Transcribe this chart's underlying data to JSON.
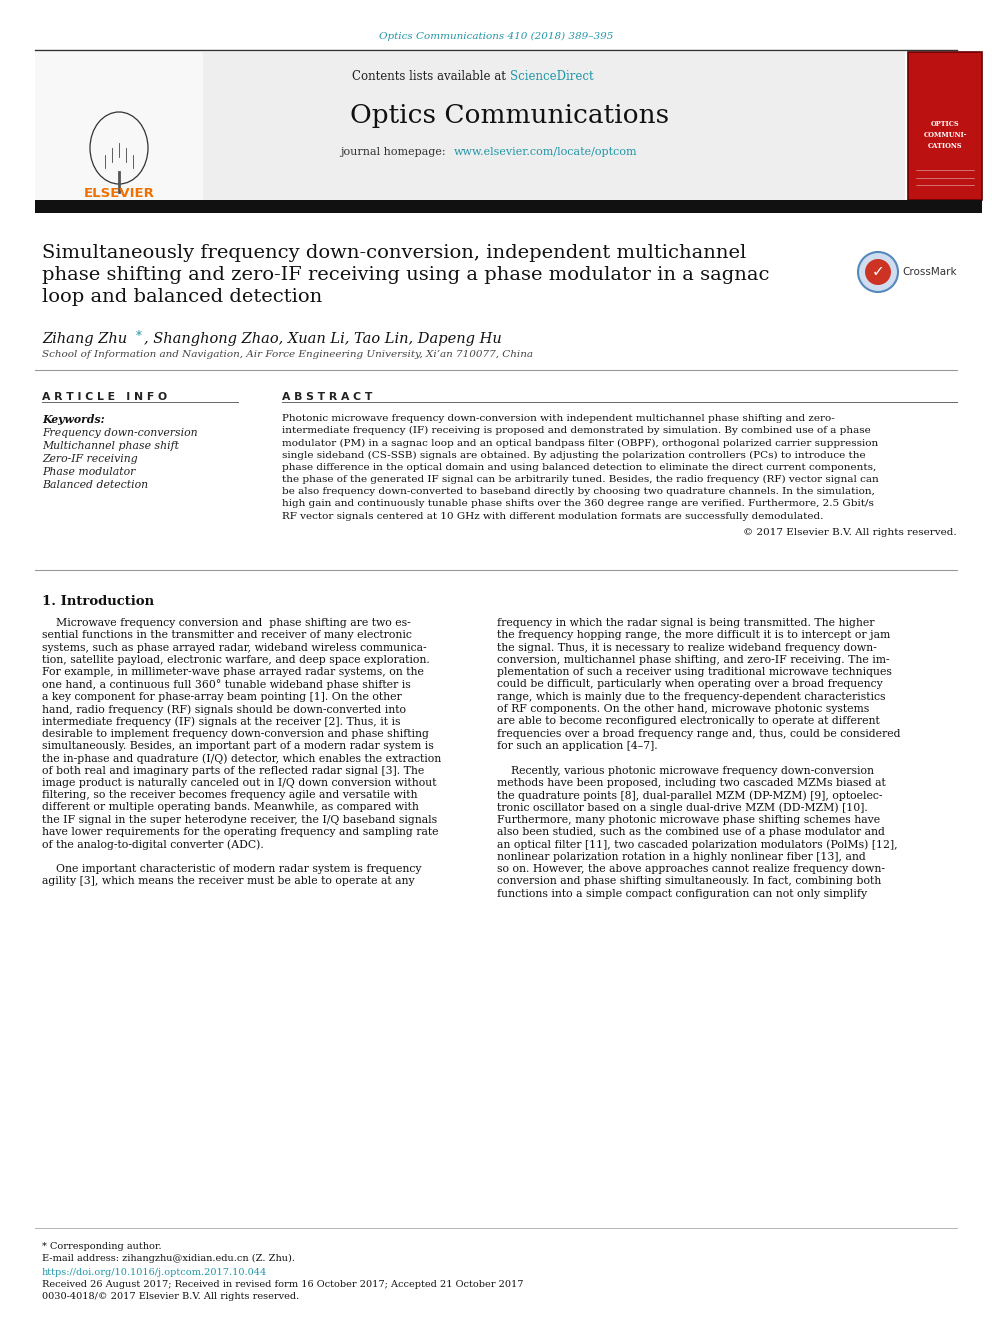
{
  "page_bg": "#ffffff",
  "top_journal_ref": "Optics Communications 410 (2018) 389–395",
  "top_journal_ref_color": "#2196a8",
  "header_contents": "Contents lists available at ",
  "header_sciencedirect": "ScienceDirect",
  "header_sciencedirect_color": "#2196a8",
  "header_journal_name": "Optics Communications",
  "header_homepage_text": "journal homepage: ",
  "header_homepage_url": "www.elsevier.com/locate/optcom",
  "header_homepage_url_color": "#2196a8",
  "title_line1": "Simultaneously frequency down-conversion, independent multichannel",
  "title_line2": "phase shifting and zero-IF receiving using a phase modulator in a sagnac",
  "title_line3": "loop and balanced detection",
  "author_name1": "Zihang Zhu",
  "author_star_color": "#2196a8",
  "author_rest": ", Shanghong Zhao, Xuan Li, Tao Lin, Dapeng Hu",
  "affiliation": "School of Information and Navigation, Air Force Engineering University, Xi’an 710077, China",
  "article_info_header": "A R T I C L E   I N F O",
  "abstract_header": "A B S T R A C T",
  "keywords_label": "Keywords:",
  "keywords": [
    "Frequency down-conversion",
    "Multichannel phase shift",
    "Zero-IF receiving",
    "Phase modulator",
    "Balanced detection"
  ],
  "abstract_lines": [
    "Photonic microwave frequency down-conversion with independent multichannel phase shifting and zero-",
    "intermediate frequency (IF) receiving is proposed and demonstrated by simulation. By combined use of a phase",
    "modulator (PM) in a sagnac loop and an optical bandpass filter (OBPF), orthogonal polarized carrier suppression",
    "single sideband (CS-SSB) signals are obtained. By adjusting the polarization controllers (PCs) to introduce the",
    "phase difference in the optical domain and using balanced detection to eliminate the direct current components,",
    "the phase of the generated IF signal can be arbitrarily tuned. Besides, the radio frequency (RF) vector signal can",
    "be also frequency down-converted to baseband directly by choosing two quadrature channels. In the simulation,",
    "high gain and continuously tunable phase shifts over the 360 degree range are verified. Furthermore, 2.5 Gbit/s",
    "RF vector signals centered at 10 GHz with different modulation formats are successfully demodulated."
  ],
  "copyright": "© 2017 Elsevier B.V. All rights reserved.",
  "section1_title": "1. Introduction",
  "intro_left_lines": [
    "    Microwave frequency conversion and  phase shifting are two es-",
    "sential functions in the transmitter and receiver of many electronic",
    "systems, such as phase arrayed radar, wideband wireless communica-",
    "tion, satellite payload, electronic warfare, and deep space exploration.",
    "For example, in millimeter-wave phase arrayed radar systems, on the",
    "one hand, a continuous full 360° tunable wideband phase shifter is",
    "a key component for phase-array beam pointing [1]. On the other",
    "hand, radio frequency (RF) signals should be down-converted into",
    "intermediate frequency (IF) signals at the receiver [2]. Thus, it is",
    "desirable to implement frequency down-conversion and phase shifting",
    "simultaneously. Besides, an important part of a modern radar system is",
    "the in-phase and quadrature (I/Q) detector, which enables the extraction",
    "of both real and imaginary parts of the reflected radar signal [3]. The",
    "image product is naturally canceled out in I/Q down conversion without",
    "filtering, so the receiver becomes frequency agile and versatile with",
    "different or multiple operating bands. Meanwhile, as compared with",
    "the IF signal in the super heterodyne receiver, the I/Q baseband signals",
    "have lower requirements for the operating frequency and sampling rate",
    "of the analog-to-digital converter (ADC).",
    "",
    "    One important characteristic of modern radar system is frequency",
    "agility [3], which means the receiver must be able to operate at any"
  ],
  "intro_right_lines": [
    "frequency in which the radar signal is being transmitted. The higher",
    "the frequency hopping range, the more difficult it is to intercept or jam",
    "the signal. Thus, it is necessary to realize wideband frequency down-",
    "conversion, multichannel phase shifting, and zero-IF receiving. The im-",
    "plementation of such a receiver using traditional microwave techniques",
    "could be difficult, particularly when operating over a broad frequency",
    "range, which is mainly due to the frequency-dependent characteristics",
    "of RF components. On the other hand, microwave photonic systems",
    "are able to become reconfigured electronically to operate at different",
    "frequencies over a broad frequency range and, thus, could be considered",
    "for such an application [4–7].",
    "",
    "    Recently, various photonic microwave frequency down-conversion",
    "methods have been proposed, including two cascaded MZMs biased at",
    "the quadrature points [8], dual-parallel MZM (DP-MZM) [9], optoelec-",
    "tronic oscillator based on a single dual-drive MZM (DD-MZM) [10].",
    "Furthermore, many photonic microwave phase shifting schemes have",
    "also been studied, such as the combined use of a phase modulator and",
    "an optical filter [11], two cascaded polarization modulators (PolMs) [12],",
    "nonlinear polarization rotation in a highly nonlinear fiber [13], and",
    "so on. However, the above approaches cannot realize frequency down-",
    "conversion and phase shifting simultaneously. In fact, combining both",
    "functions into a simple compact configuration can not only simplify"
  ],
  "footer_star_note": "* Corresponding author.",
  "footer_email": "E-mail address: zihangzhu@xidian.edu.cn (Z. Zhu).",
  "footer_doi": "https://doi.org/10.1016/j.optcom.2017.10.044",
  "footer_received": "Received 26 August 2017; Received in revised form 16 October 2017; Accepted 21 October 2017",
  "footer_issn": "0030-4018/© 2017 Elsevier B.V. All rights reserved.",
  "elsevier_logo_color": "#f07000",
  "red_book_color": "#bb1111"
}
